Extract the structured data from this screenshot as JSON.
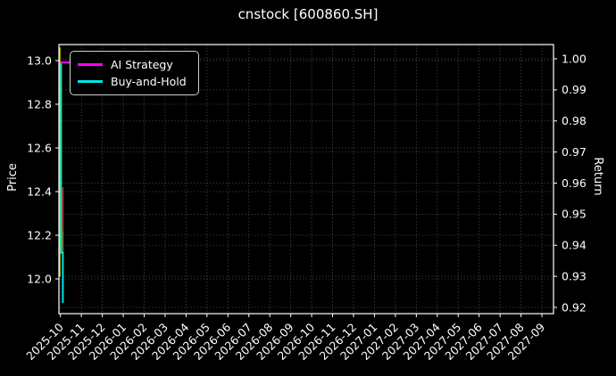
{
  "chart_data": {
    "type": "line",
    "title": "cnstock [600860.SH]",
    "ylabel_left": "Price",
    "ylabel_right": "Return",
    "background_color": "#000000",
    "text_color": "#ffffff",
    "grid": "dotted, both y-axes and monthly x ticks",
    "legend_position": "upper left",
    "x_tick_labels": [
      "2025-10",
      "2025-11",
      "2025-12",
      "2026-01",
      "2026-02",
      "2026-03",
      "2026-04",
      "2026-05",
      "2026-06",
      "2026-07",
      "2026-08",
      "2026-09",
      "2026-10",
      "2026-11",
      "2026-12",
      "2027-01",
      "2027-02",
      "2027-03",
      "2027-04",
      "2027-05",
      "2027-06",
      "2027-07",
      "2027-08",
      "2027-09"
    ],
    "left_tick_labels": [
      "13.0",
      "12.8",
      "12.6",
      "12.4",
      "12.2",
      "12.0"
    ],
    "left_tick_values": [
      13.0,
      12.8,
      12.6,
      12.4,
      12.2,
      12.0
    ],
    "left_ylim": [
      11.84,
      13.07
    ],
    "right_tick_labels": [
      "1.00",
      "0.99",
      "0.98",
      "0.97",
      "0.96",
      "0.95",
      "0.94",
      "0.93",
      "0.92"
    ],
    "right_tick_values": [
      1.0,
      0.99,
      0.98,
      0.97,
      0.96,
      0.95,
      0.94,
      0.93,
      0.92
    ],
    "right_ylim": [
      0.918,
      1.005
    ],
    "series": [
      {
        "name": "AI Strategy",
        "axis": "right",
        "color": "#ff00ff",
        "width": 2.2,
        "points": [
          [
            0.0,
            0.9988
          ],
          [
            0.5,
            0.9988
          ]
        ]
      },
      {
        "name": "Buy-and-Hold",
        "axis": "left",
        "color": "#00e5e5",
        "width": 2.0,
        "points": [
          [
            0.03,
            12.99
          ],
          [
            0.03,
            12.12
          ],
          [
            0.115,
            12.12
          ],
          [
            0.115,
            11.89
          ]
        ]
      }
    ],
    "event_lines": [
      {
        "name": "buy-signal-line",
        "color": "#bfbf00",
        "width": 1.6,
        "month": -0.03,
        "price_from": 13.06,
        "price_to": 12.01
      },
      {
        "name": "sell-signal-line",
        "color": "#cc2222",
        "width": 1.8,
        "month": 0.115,
        "price_from": 12.42,
        "price_to": 12.22
      },
      {
        "name": "signal-overlap-line",
        "color": "#8a6d1a",
        "width": 1.8,
        "month": 0.115,
        "price_from": 12.22,
        "price_to": 12.12
      }
    ]
  }
}
